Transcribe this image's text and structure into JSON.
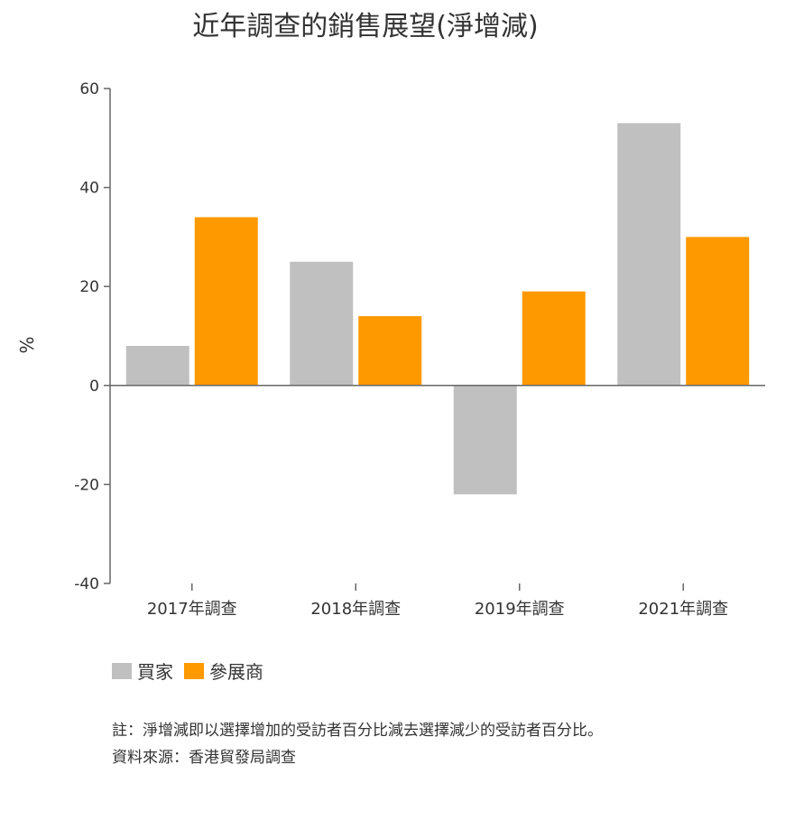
{
  "chart_data": {
    "type": "bar",
    "title": "近年調查的銷售展望(淨增減)",
    "ylabel": "%",
    "xlabel": "",
    "categories": [
      "2017年調查",
      "2018年調查",
      "2019年調查",
      "2021年調查"
    ],
    "series": [
      {
        "name": "買家",
        "values": [
          8,
          25,
          -22,
          53
        ],
        "color": "#c0c0c0"
      },
      {
        "name": "參展商",
        "values": [
          34,
          14,
          19,
          30
        ],
        "color": "#ff9900"
      }
    ],
    "ylim": [
      -40,
      60
    ],
    "yticks": [
      60,
      40,
      20,
      0,
      -20,
      -40
    ],
    "ytick_labels": [
      "60",
      "40",
      "20",
      "0",
      "-20",
      "-40"
    ],
    "grid": false,
    "legend": "bottom-left"
  },
  "notes": {
    "note": "註：淨增減即以選擇增加的受訪者百分比減去選擇減少的受訪者百分比。",
    "source": "資料來源：香港貿發局調查"
  }
}
